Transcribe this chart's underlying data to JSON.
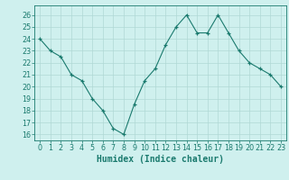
{
  "x": [
    0,
    1,
    2,
    3,
    4,
    5,
    6,
    7,
    8,
    9,
    10,
    11,
    12,
    13,
    14,
    15,
    16,
    17,
    18,
    19,
    20,
    21,
    22,
    23
  ],
  "y": [
    24,
    23,
    22.5,
    21,
    20.5,
    19,
    18,
    16.5,
    16,
    18.5,
    20.5,
    21.5,
    23.5,
    25,
    26,
    24.5,
    24.5,
    26,
    24.5,
    23,
    22,
    21.5,
    21,
    20
  ],
  "line_color": "#1a7a6e",
  "marker_color": "#1a7a6e",
  "bg_color": "#cff0ee",
  "grid_color": "#b0d8d5",
  "xlabel": "Humidex (Indice chaleur)",
  "ylabel_ticks": [
    16,
    17,
    18,
    19,
    20,
    21,
    22,
    23,
    24,
    25,
    26
  ],
  "ylim": [
    15.5,
    26.8
  ],
  "xlim": [
    -0.5,
    23.5
  ],
  "tick_color": "#1a7a6e",
  "label_color": "#1a7a6e",
  "font_size": 5.8,
  "xlabel_fontsize": 7.0
}
